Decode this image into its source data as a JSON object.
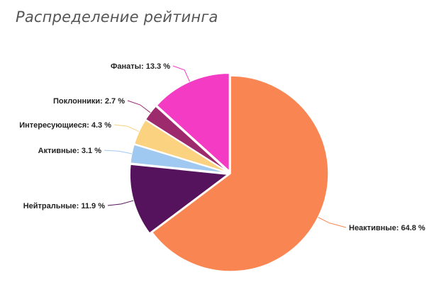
{
  "page_title": "Распределение рейтинга",
  "chart_data": {
    "type": "pie",
    "title": "Распределение рейтинга",
    "start_angle_deg": 0,
    "direction": "clockwise",
    "slices": [
      {
        "label": "Неактивные",
        "value": 64.8,
        "display": "Неактивные: 64.8 %",
        "color": "#f98553"
      },
      {
        "label": "Нейтральные",
        "value": 11.9,
        "display": "Нейтральные: 11.9 %",
        "color": "#56135d"
      },
      {
        "label": "Активные",
        "value": 3.1,
        "display": "Активные: 3.1 %",
        "color": "#a0c9f1"
      },
      {
        "label": "Интересующиеся",
        "value": 4.3,
        "display": "Интересующиеся: 4.3 %",
        "color": "#fad280"
      },
      {
        "label": "Поклонники",
        "value": 2.7,
        "display": "Поклонники: 2.7 %",
        "color": "#9d2a6d"
      },
      {
        "label": "Фанаты",
        "value": 13.3,
        "display": "Фанаты: 13.3 %",
        "color": "#f43bc3"
      }
    ]
  }
}
